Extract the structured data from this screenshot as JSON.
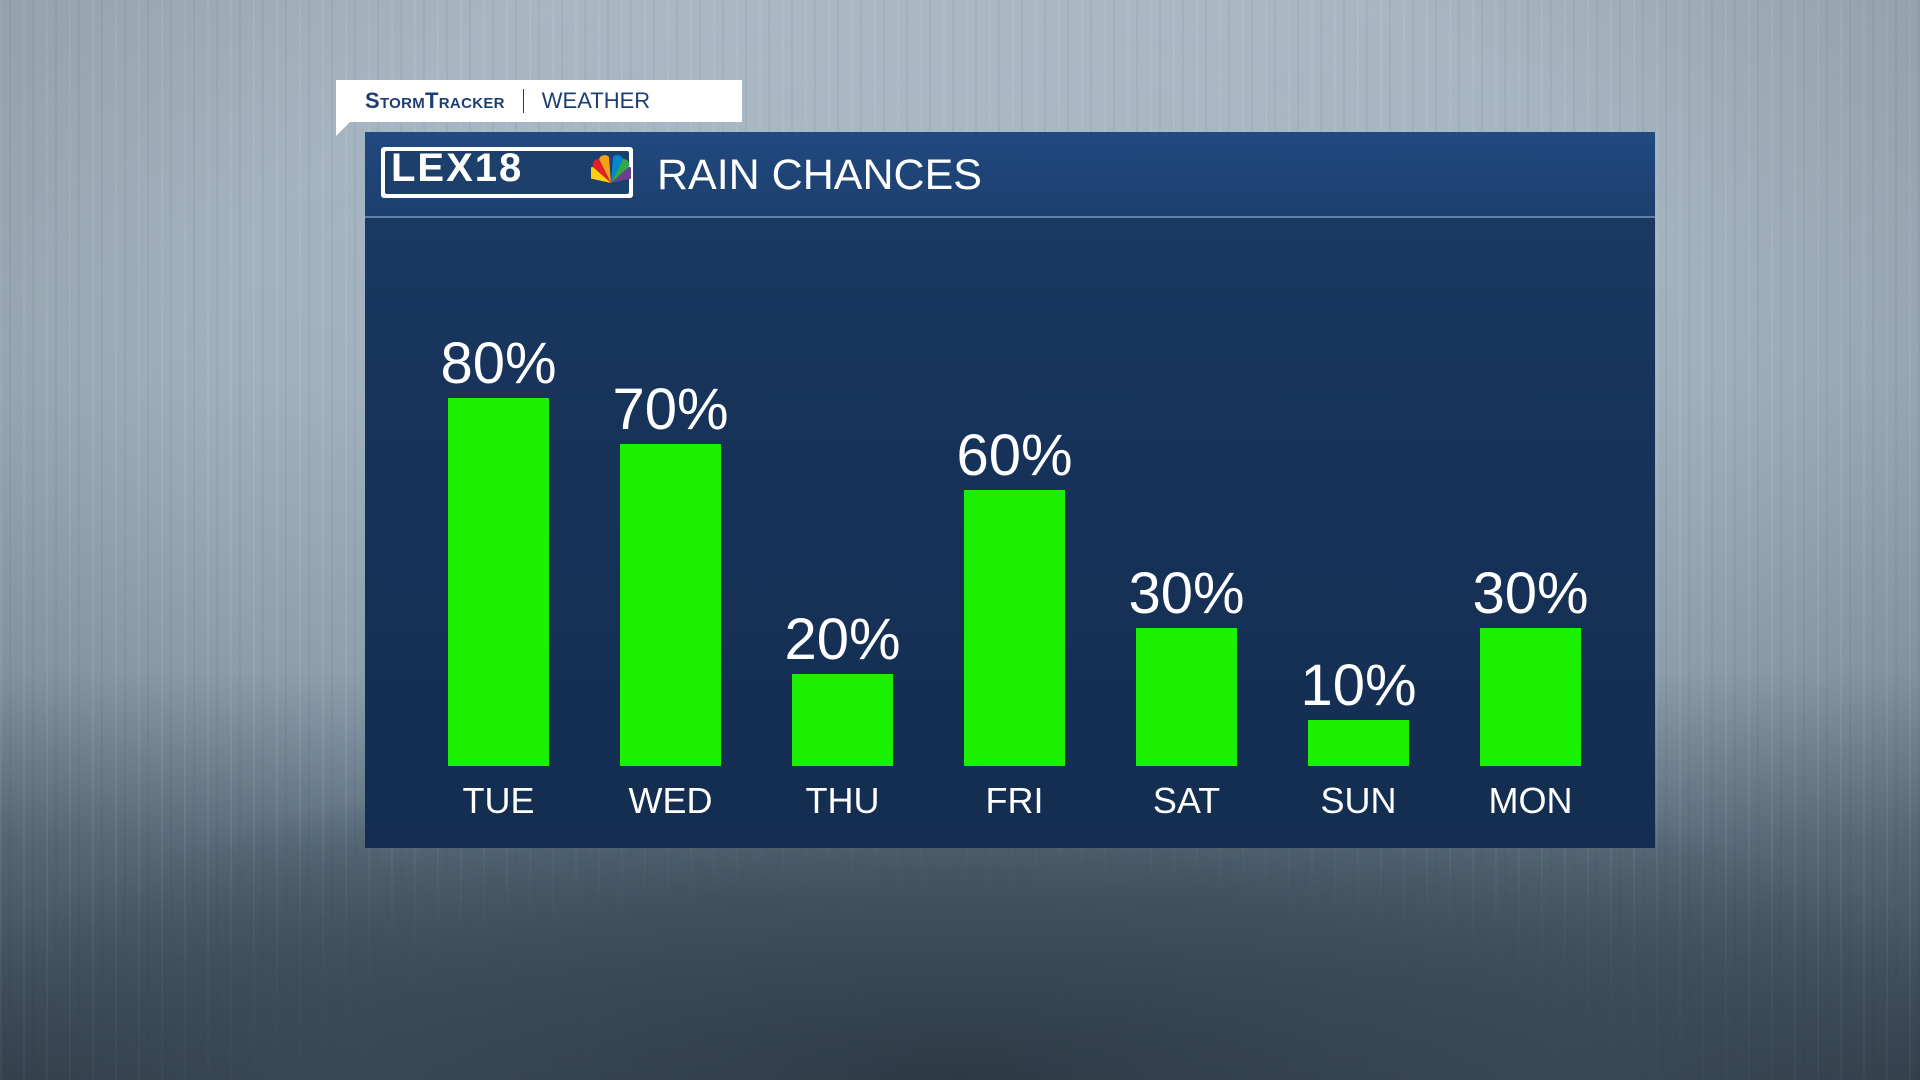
{
  "brand_tag": {
    "brand": "StormTracker",
    "label": "WEATHER"
  },
  "header": {
    "logo_text": "LEX18",
    "title": "RAIN CHANCES"
  },
  "colors": {
    "bar": "#1bf000",
    "panel": "#17335a",
    "header": "#1c3f6e",
    "text": "#ffffff"
  },
  "chart_data": {
    "type": "bar",
    "categories": [
      "TUE",
      "WED",
      "THU",
      "FRI",
      "SAT",
      "SUN",
      "MON"
    ],
    "values": [
      80,
      70,
      20,
      60,
      30,
      10,
      30
    ],
    "value_labels": [
      "80%",
      "70%",
      "20%",
      "60%",
      "30%",
      "10%",
      "30%"
    ],
    "unit": "%",
    "ylim": [
      0,
      100
    ],
    "grid": false,
    "legend": "none"
  }
}
